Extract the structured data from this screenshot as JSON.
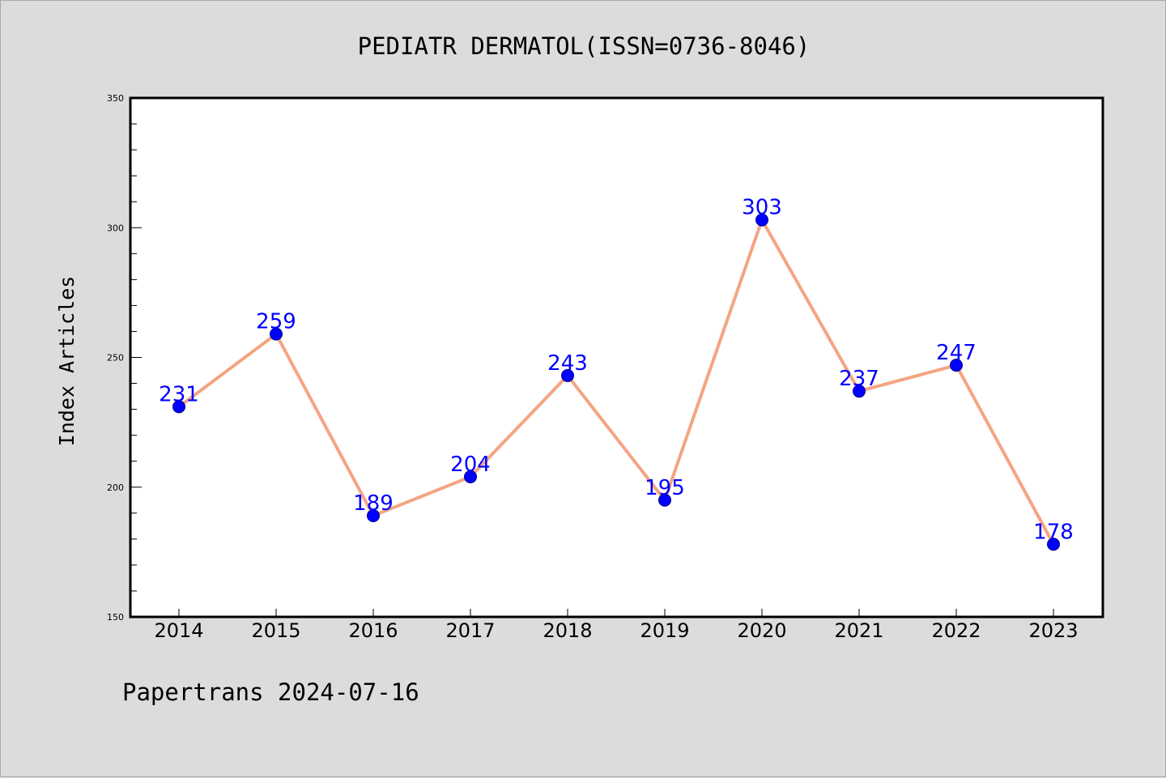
{
  "chart_data": {
    "type": "line",
    "title": "PEDIATR DERMATOL(ISSN=0736-8046)",
    "xlabel": "",
    "ylabel": "Index Articles",
    "categories": [
      "2014",
      "2015",
      "2016",
      "2017",
      "2018",
      "2019",
      "2020",
      "2021",
      "2022",
      "2023"
    ],
    "series": [
      {
        "values": [
          231,
          259,
          189,
          204,
          243,
          195,
          303,
          237,
          247,
          178
        ]
      }
    ],
    "ylim": [
      150,
      350
    ],
    "yticks": [
      "150",
      "200",
      "250",
      "300",
      "350"
    ],
    "data_labels": [
      "231",
      "259",
      "189",
      "204",
      "243",
      "195",
      "303",
      "237",
      "247",
      "178"
    ],
    "grid": false,
    "legend": "none",
    "colors": {
      "line": "#f4a582",
      "marker": "#0000ff",
      "label": "#0000ff",
      "background": "#dcdcdc",
      "plot_bg": "#ffffff"
    }
  },
  "footer": {
    "text": "Papertrans 2024-07-16"
  }
}
